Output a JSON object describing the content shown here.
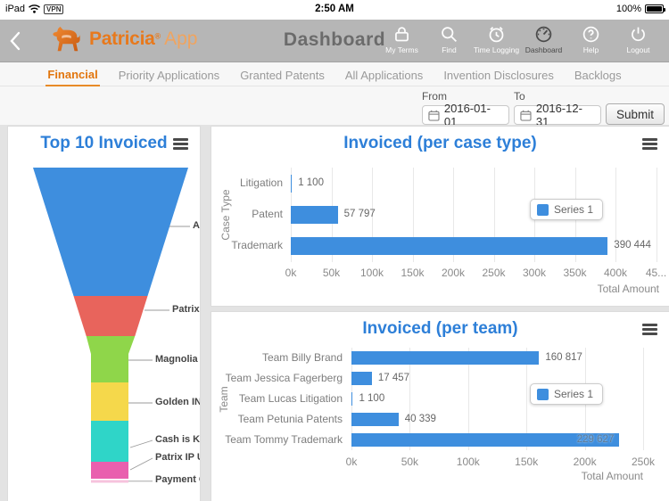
{
  "status_bar": {
    "device": "iPad",
    "vpn_badge": "VPN",
    "time": "2:50 AM",
    "battery_percent": "100%"
  },
  "nav": {
    "brand_name": "Patricia",
    "brand_reg": "®",
    "brand_suffix": "App",
    "page_title": "Dashboard",
    "actions": [
      {
        "label": "My Terms",
        "icon": "lock"
      },
      {
        "label": "Find",
        "icon": "search"
      },
      {
        "label": "Time Logging",
        "icon": "alarm-clock"
      },
      {
        "label": "Dashboard",
        "icon": "gauge",
        "active": true
      },
      {
        "label": "Help",
        "icon": "question"
      },
      {
        "label": "Logout",
        "icon": "power"
      }
    ]
  },
  "tabs": [
    {
      "label": "Financial",
      "active": true
    },
    {
      "label": "Priority Applications"
    },
    {
      "label": "Granted Patents"
    },
    {
      "label": "All Applications"
    },
    {
      "label": "Invention Disclosures"
    },
    {
      "label": "Backlogs"
    }
  ],
  "filters": {
    "from_label": "From",
    "from_value": "2016-01-01",
    "to_label": "To",
    "to_value": "2016-12-31",
    "submit_label": "Submit"
  },
  "colors": {
    "accent_orange": "#e2760e",
    "title_blue": "#2d7fd8",
    "bar_blue": "#3e8ede",
    "nav_gray": "#b6b6b6"
  },
  "chart_data": [
    {
      "type": "funnel",
      "title": "Top 10 Invoiced",
      "categories": [
        "A",
        "Patrix SWE",
        "Magnolia",
        "Golden INC",
        "Cash is King In",
        "Patrix IP USA,",
        "Payment Com"
      ],
      "colors": [
        "#3e8ede",
        "#e8645c",
        "#8fd64a",
        "#f5d84b",
        "#2fd5c8",
        "#e95fae",
        "#f6c3dd"
      ]
    },
    {
      "type": "bar",
      "orientation": "horizontal",
      "title": "Invoiced (per case type)",
      "categories": [
        "Litigation",
        "Patent",
        "Trademark"
      ],
      "values": [
        1100,
        57797,
        390444
      ],
      "value_labels": [
        "1 100",
        "57 797",
        "390 444"
      ],
      "xlabel": "Total Amount",
      "ylabel": "Case Type",
      "xlim": [
        0,
        457000
      ],
      "tick_step": 50000,
      "tick_labels": [
        "0k",
        "50k",
        "100k",
        "150k",
        "200k",
        "250k",
        "300k",
        "350k",
        "400k",
        "45..."
      ],
      "legend": [
        "Series 1"
      ],
      "legend_position": "middle-right",
      "grid": true
    },
    {
      "type": "bar",
      "orientation": "horizontal",
      "title": "Invoiced (per team)",
      "categories": [
        "Team Billy Brand",
        "Team Jessica Fagerberg",
        "Team Lucas Litigation",
        "Team Petunia Patents",
        "Team Tommy Trademark"
      ],
      "values": [
        160817,
        17457,
        1100,
        40339,
        229627
      ],
      "value_labels": [
        "160 817",
        "17 457",
        "1 100",
        "40 339",
        "229 627"
      ],
      "xlabel": "Total Amount",
      "ylabel": "Team",
      "xlim": [
        0,
        250000
      ],
      "tick_step": 50000,
      "tick_labels": [
        "0k",
        "50k",
        "100k",
        "150k",
        "200k",
        "250k"
      ],
      "legend": [
        "Series 1"
      ],
      "legend_position": "middle-right",
      "grid": true
    }
  ]
}
